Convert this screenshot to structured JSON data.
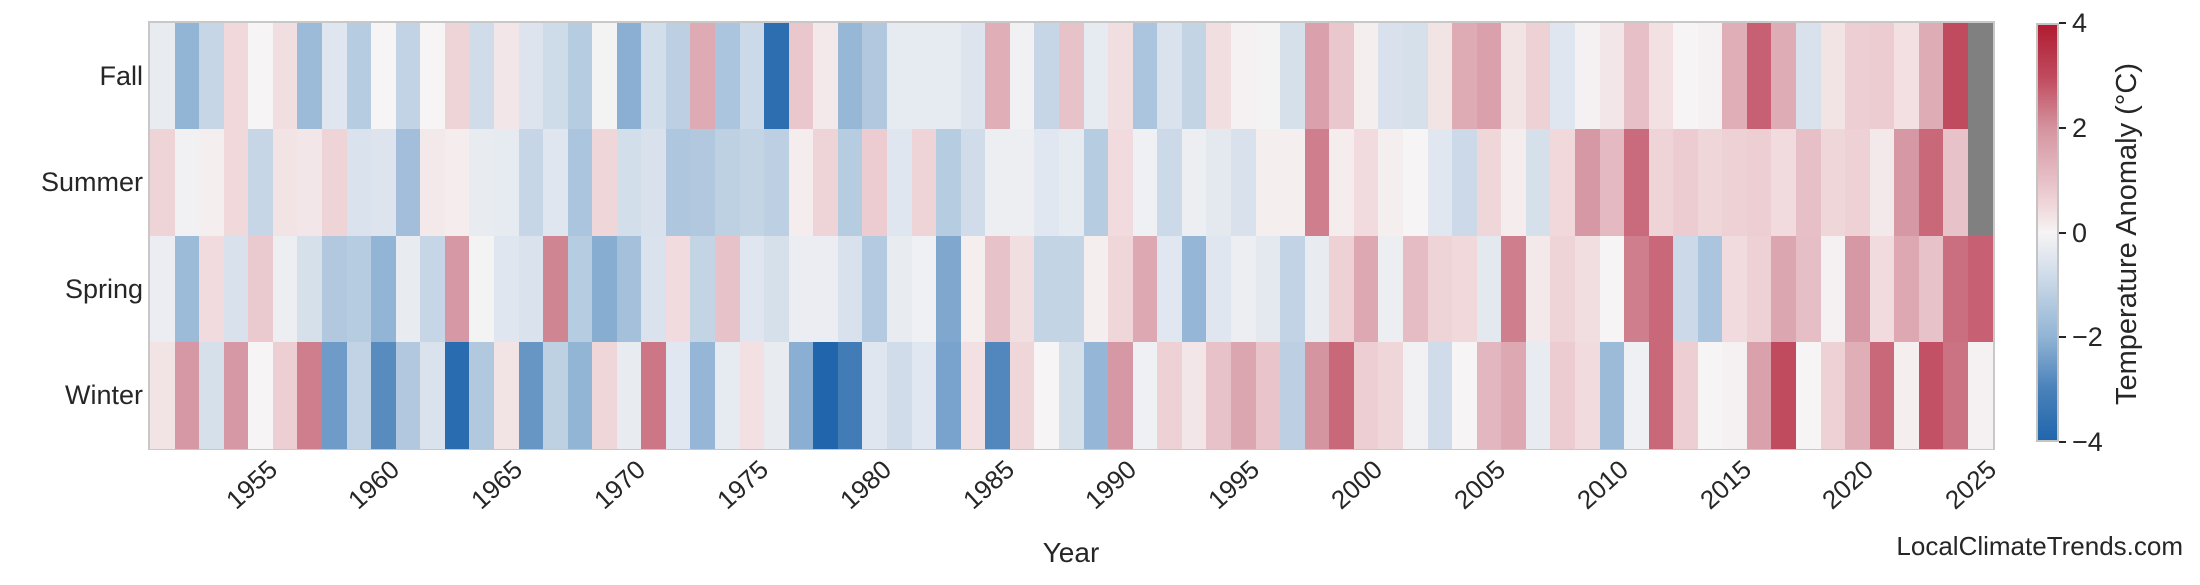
{
  "chart_data": {
    "type": "heatmap",
    "xlabel": "Year",
    "rows": [
      "Fall",
      "Summer",
      "Spring",
      "Winter"
    ],
    "years": [
      1951,
      1952,
      1953,
      1954,
      1955,
      1956,
      1957,
      1958,
      1959,
      1960,
      1961,
      1962,
      1963,
      1964,
      1965,
      1966,
      1967,
      1968,
      1969,
      1970,
      1971,
      1972,
      1973,
      1974,
      1975,
      1976,
      1977,
      1978,
      1979,
      1980,
      1981,
      1982,
      1983,
      1984,
      1985,
      1986,
      1987,
      1988,
      1989,
      1990,
      1991,
      1992,
      1993,
      1994,
      1995,
      1996,
      1997,
      1998,
      1999,
      2000,
      2001,
      2002,
      2003,
      2004,
      2005,
      2006,
      2007,
      2008,
      2009,
      2010,
      2011,
      2012,
      2013,
      2014,
      2015,
      2016,
      2017,
      2018,
      2019,
      2020,
      2021,
      2022,
      2023,
      2024,
      2025
    ],
    "series": [
      {
        "name": "Fall",
        "values": [
          -0.3,
          -2.0,
          -1.0,
          0.5,
          0.0,
          0.4,
          -1.8,
          -0.5,
          -1.3,
          0.0,
          -1.1,
          0.0,
          0.6,
          -0.8,
          0.25,
          -0.55,
          -0.85,
          -1.3,
          -0.05,
          -2.1,
          -0.75,
          -1.2,
          1.5,
          -1.5,
          -0.9,
          -3.7,
          0.85,
          0.2,
          -1.9,
          -1.4,
          -0.35,
          -0.35,
          -0.35,
          -0.55,
          1.4,
          -0.1,
          -1.0,
          0.95,
          -0.35,
          0.4,
          -1.5,
          -0.6,
          -1.05,
          0.4,
          0.05,
          -0.05,
          -0.7,
          1.7,
          0.85,
          0.1,
          -0.65,
          -0.7,
          0.3,
          1.5,
          1.7,
          0.3,
          0.65,
          -0.5,
          0.05,
          0.25,
          1.0,
          0.35,
          0.0,
          0.05,
          1.4,
          2.7,
          1.45,
          -0.65,
          0.3,
          0.7,
          0.75,
          0.35,
          1.45,
          3.0,
          null
        ]
      },
      {
        "name": "Summer",
        "values": [
          0.6,
          -0.1,
          0.1,
          0.5,
          -1.0,
          0.3,
          0.25,
          0.6,
          -0.6,
          -0.55,
          -1.7,
          0.2,
          0.15,
          -0.3,
          -0.35,
          -1.0,
          -0.5,
          -1.5,
          0.55,
          -0.75,
          -0.65,
          -1.45,
          -1.4,
          -1.15,
          -1.05,
          -1.2,
          0.15,
          0.6,
          -1.3,
          0.75,
          -0.5,
          0.6,
          -1.3,
          -0.8,
          -0.2,
          -0.2,
          -0.45,
          -0.35,
          -1.3,
          0.45,
          -0.15,
          -0.9,
          -0.2,
          -0.4,
          -0.65,
          0.1,
          0.1,
          2.3,
          0.15,
          0.45,
          0.1,
          0.0,
          -0.45,
          -0.9,
          0.55,
          0.15,
          -0.7,
          0.5,
          1.9,
          1.15,
          2.55,
          0.6,
          0.75,
          0.55,
          0.65,
          0.7,
          0.45,
          1.0,
          0.55,
          0.65,
          0.2,
          1.9,
          2.6,
          0.95,
          null
        ]
      },
      {
        "name": "Spring",
        "values": [
          -0.25,
          -1.8,
          0.45,
          -0.65,
          0.8,
          -0.2,
          -0.7,
          -1.4,
          -1.3,
          -2.0,
          -0.3,
          -1.0,
          1.9,
          -0.05,
          -0.5,
          -0.6,
          2.2,
          -1.3,
          -2.15,
          -1.65,
          -0.6,
          0.45,
          -1.05,
          0.95,
          -0.5,
          -0.7,
          -0.25,
          -0.25,
          -0.65,
          -1.35,
          -0.3,
          -0.15,
          -2.25,
          0.1,
          0.95,
          0.4,
          -1.05,
          -1.05,
          0.1,
          0.55,
          1.55,
          -0.45,
          -1.95,
          -0.5,
          -0.2,
          -0.4,
          -1.1,
          -0.3,
          0.65,
          1.55,
          -0.2,
          1.1,
          0.6,
          0.5,
          -0.4,
          2.3,
          0.2,
          0.6,
          0.4,
          0.0,
          2.3,
          2.6,
          -0.9,
          -1.5,
          0.45,
          0.65,
          1.6,
          1.05,
          0.05,
          1.9,
          0.45,
          1.55,
          0.95,
          2.5,
          2.7
        ]
      },
      {
        "name": "Winter",
        "values": [
          0.3,
          1.9,
          -0.7,
          1.9,
          0.0,
          0.7,
          2.3,
          -2.5,
          -1.1,
          -2.8,
          -1.4,
          -0.6,
          -3.8,
          -1.4,
          0.3,
          -2.6,
          -1.15,
          -2.0,
          0.55,
          -0.3,
          2.4,
          -0.45,
          -1.95,
          -0.35,
          0.35,
          -0.3,
          -2.1,
          -4.0,
          -3.2,
          -0.5,
          -0.8,
          -0.45,
          -2.35,
          0.35,
          -2.9,
          0.55,
          0.0,
          -0.7,
          -1.95,
          1.9,
          -0.15,
          0.65,
          0.25,
          0.95,
          1.6,
          0.9,
          -1.2,
          2.0,
          2.6,
          0.7,
          0.55,
          -0.1,
          -0.8,
          0.0,
          1.2,
          1.55,
          -0.3,
          0.75,
          0.45,
          -1.8,
          -0.15,
          2.6,
          0.7,
          0.0,
          0.05,
          1.7,
          3.0,
          0.0,
          0.65,
          1.4,
          2.6,
          0.1,
          2.9,
          2.45,
          0.05
        ]
      }
    ],
    "x_tick_years": [
      1955,
      1960,
      1965,
      1970,
      1975,
      1980,
      1985,
      1990,
      1995,
      2000,
      2005,
      2010,
      2015,
      2020,
      2025
    ],
    "colorbar": {
      "label": "Temperature Anomaly (°C)",
      "tick_labels": [
        "4",
        "2",
        "0",
        "−2",
        "−4"
      ],
      "tick_values": [
        4,
        2,
        0,
        -2,
        -4
      ],
      "vmin": -4,
      "vmax": 4
    },
    "missing_color": "#808080",
    "colormap_anchors": [
      {
        "v": -4.0,
        "color": "#2166ac"
      },
      {
        "v": -3.0,
        "color": "#4a82ba"
      },
      {
        "v": -2.0,
        "color": "#92b4d5"
      },
      {
        "v": -1.0,
        "color": "#c6d6e6"
      },
      {
        "v": -0.5,
        "color": "#dfe6ef"
      },
      {
        "v": 0.0,
        "color": "#f6f4f4"
      },
      {
        "v": 0.5,
        "color": "#f0d8db"
      },
      {
        "v": 1.0,
        "color": "#e7c0c7"
      },
      {
        "v": 2.0,
        "color": "#d494a0"
      },
      {
        "v": 3.0,
        "color": "#c04a5e"
      },
      {
        "v": 4.0,
        "color": "#b01c32"
      }
    ],
    "grid": false,
    "axis_range_years": [
      1951,
      2025
    ]
  },
  "footer": {
    "watermark": "LocalClimateTrends.com"
  }
}
